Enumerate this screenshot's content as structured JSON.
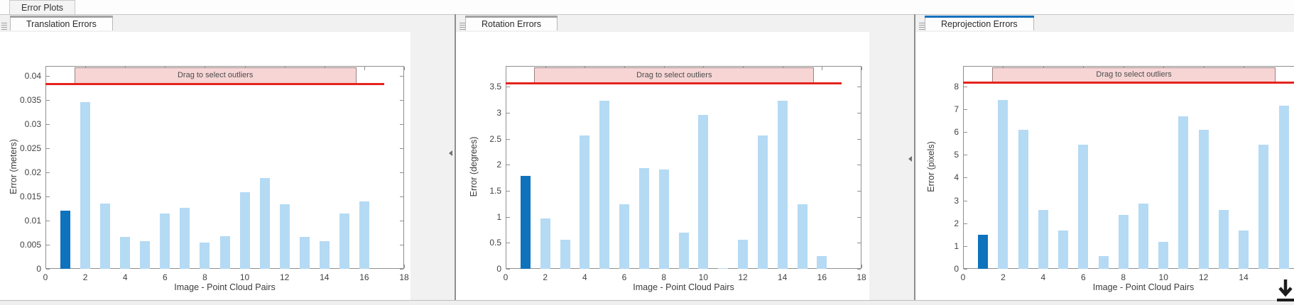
{
  "app": {
    "top_tab": "Error Plots"
  },
  "panels": [
    {
      "tab": "Translation Errors",
      "active": false
    },
    {
      "tab": "Rotation Errors",
      "active": false
    },
    {
      "tab": "Reprojection Errors",
      "active": true
    }
  ],
  "chart_data": [
    {
      "type": "bar",
      "title": "Translation Errors",
      "xlabel": "Image - Point Cloud Pairs",
      "ylabel": "Error (meters)",
      "band_label": "Drag to select outliers",
      "x": [
        1,
        2,
        3,
        4,
        5,
        6,
        7,
        8,
        9,
        10,
        11,
        12,
        13,
        14,
        15,
        16
      ],
      "values": [
        0.012,
        0.0345,
        0.0135,
        0.0066,
        0.0057,
        0.0115,
        0.0126,
        0.0054,
        0.0067,
        0.0158,
        0.0188,
        0.0134,
        0.0066,
        0.0057,
        0.0115,
        0.014
      ],
      "highlighted_index": 0,
      "xlim": [
        0,
        18
      ],
      "ylim": [
        0,
        0.042
      ],
      "xticks": [
        0,
        2,
        4,
        6,
        8,
        10,
        12,
        14,
        16,
        18
      ],
      "yticks": [
        "0",
        "0.005",
        "0.01",
        "0.015",
        "0.02",
        "0.025",
        "0.03",
        "0.035",
        "0.04"
      ],
      "threshold": 0.0382,
      "threshold_x_extent": 17,
      "band_x": [
        1.45,
        15.6
      ],
      "legend": "none",
      "grid": false
    },
    {
      "type": "bar",
      "title": "Rotation Errors",
      "xlabel": "Image - Point Cloud Pairs",
      "ylabel": "Error (degrees)",
      "band_label": "Drag to select outliers",
      "x": [
        1,
        2,
        3,
        4,
        5,
        6,
        7,
        8,
        9,
        10,
        11,
        12,
        13,
        14,
        15,
        16
      ],
      "values": [
        1.79,
        0.97,
        0.56,
        2.56,
        3.23,
        1.24,
        1.94,
        1.91,
        0.7,
        2.96,
        0.02,
        0.56,
        2.56,
        3.23,
        1.24,
        0.25
      ],
      "highlighted_index": 0,
      "xlim": [
        0,
        18
      ],
      "ylim": [
        0,
        3.9
      ],
      "xticks": [
        0,
        2,
        4,
        6,
        8,
        10,
        12,
        14,
        16,
        18
      ],
      "yticks": [
        "0",
        "0.5",
        "1",
        "1.5",
        "2",
        "2.5",
        "3",
        "3.5"
      ],
      "threshold": 3.57,
      "threshold_x_extent": 17,
      "band_x": [
        1.45,
        15.6
      ],
      "legend": "none",
      "grid": false
    },
    {
      "type": "bar",
      "title": "Reprojection Errors",
      "xlabel": "Image - Point Cloud Pairs",
      "ylabel": "Error (pixels)",
      "band_label": "Drag to select outliers",
      "x": [
        1,
        2,
        3,
        4,
        5,
        6,
        7,
        8,
        9,
        10,
        11,
        12,
        13,
        14,
        15,
        16
      ],
      "values": [
        1.5,
        7.4,
        6.1,
        2.58,
        1.68,
        5.45,
        0.55,
        2.38,
        2.86,
        1.18,
        6.7,
        6.1,
        2.58,
        1.68,
        5.45,
        7.15
      ],
      "highlighted_index": 0,
      "xlim": [
        0,
        18
      ],
      "ylim": [
        0,
        8.9
      ],
      "xticks": [
        0,
        2,
        4,
        6,
        8,
        10,
        12,
        14
      ],
      "yticks": [
        "0",
        "1",
        "2",
        "3",
        "4",
        "5",
        "6",
        "7",
        "8"
      ],
      "threshold": 8.18,
      "threshold_x_extent": 17,
      "band_x": [
        1.45,
        15.6
      ],
      "legend": "none",
      "grid": false
    }
  ],
  "colors": {
    "bar_light": "#b5daf4",
    "bar_selected": "#0e72bd",
    "threshold_red": "#e5231e",
    "band_fill": "#f6d5d4",
    "band_border": "#9d8282",
    "tab_accent_active": "#1470bd",
    "tab_accent_inactive": "#a3a3a3"
  }
}
